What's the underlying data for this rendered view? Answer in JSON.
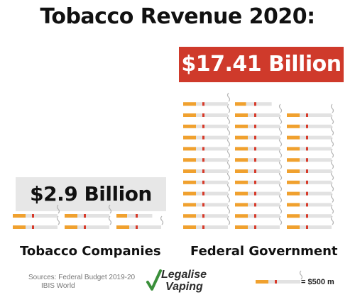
{
  "chart_data": {
    "type": "bar",
    "title": "Tobacco Revenue 2020:",
    "categories": [
      "Tobacco Companies",
      "Federal Government"
    ],
    "values": [
      2.9,
      17.41
    ],
    "value_labels": [
      "$2.9 Billion",
      "$17.41 Billion"
    ],
    "unit_per_icon": 0.5,
    "legend": {
      "value_label": "= $500 m",
      "placement": "bottom-right"
    },
    "colors": {
      "filter": "#f0a12f",
      "band": "#d73a2a",
      "paper": "#e2e2e2",
      "federal_badge": "#cf3a2b",
      "companies_badge": "#e7e7e7"
    }
  },
  "sources": {
    "line1": "Sources: Federal Budget 2019-20",
    "line2": "IBIS World"
  },
  "logo": {
    "line1": "Legalise",
    "line2": "Vaping",
    "check_color": "#3a8f3a"
  }
}
